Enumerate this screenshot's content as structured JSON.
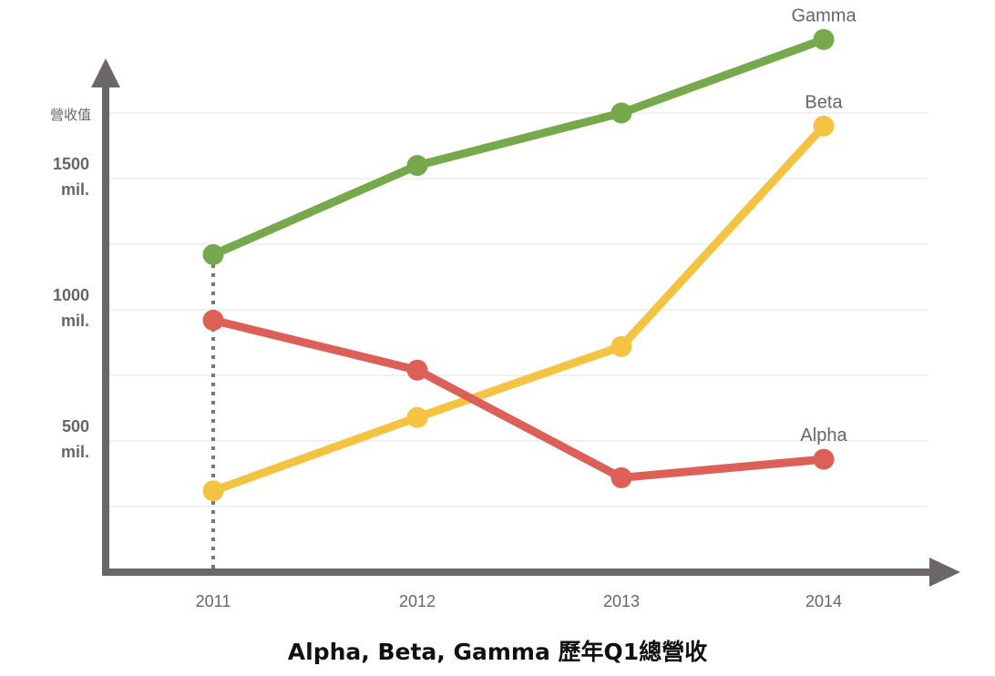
{
  "chart_data": {
    "type": "line",
    "title": "Alpha, Beta, Gamma 歷年Q1總營收",
    "ylabel": "營收值",
    "x": [
      "2011",
      "2012",
      "2013",
      "2014"
    ],
    "y_ticks": [
      {
        "value": 500,
        "line1": "500",
        "line2": "mil."
      },
      {
        "value": 1000,
        "line1": "1000",
        "line2": "mil."
      },
      {
        "value": 1500,
        "line1": "1500",
        "line2": "mil."
      }
    ],
    "ylim": [
      0,
      2000
    ],
    "grid": true,
    "series": [
      {
        "name": "Gamma",
        "color": "#76a84c",
        "values": [
          1210,
          1550,
          1750,
          2030
        ]
      },
      {
        "name": "Beta",
        "color": "#f5c342",
        "values": [
          310,
          590,
          860,
          1700
        ]
      },
      {
        "name": "Alpha",
        "color": "#dc6058",
        "values": [
          960,
          770,
          360,
          430
        ]
      }
    ],
    "highlight_x": "2011"
  }
}
